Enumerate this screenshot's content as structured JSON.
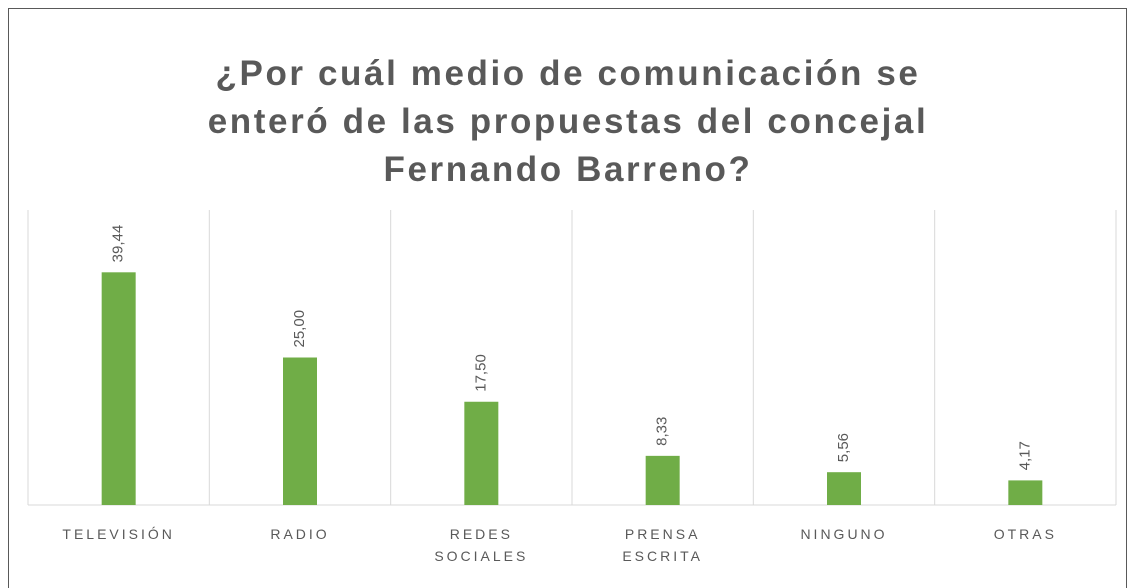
{
  "chart_data": {
    "type": "bar",
    "title": "¿Por cuál medio de comunicación se enteró de las propuestas del concejal Fernando Barreno?",
    "categories": [
      "TELEVISIÓN",
      "RADIO",
      "REDES SOCIALES",
      "PRENSA ESCRITA",
      "NINGUNO",
      "OTRAS"
    ],
    "values": [
      39.44,
      25.0,
      17.5,
      8.33,
      5.56,
      4.17
    ],
    "value_labels": [
      "39,44",
      "25,00",
      "17,50",
      "8,33",
      "5,56",
      "4,17"
    ],
    "color": "#70ad47",
    "ylim": [
      0,
      50
    ],
    "grid": true
  }
}
